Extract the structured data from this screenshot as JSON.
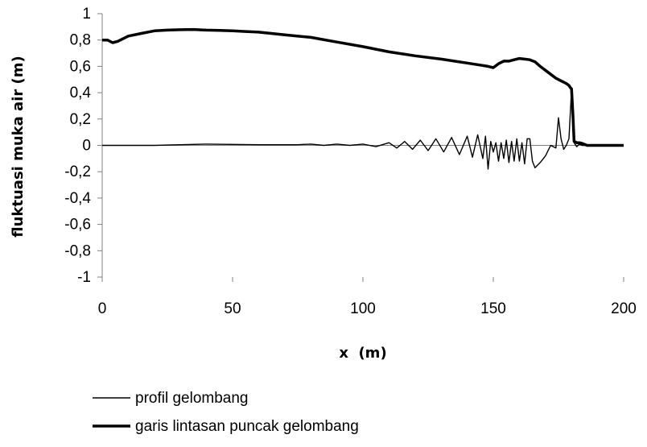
{
  "chart_data": {
    "type": "line",
    "title": "",
    "xlabel": "x  (m)",
    "ylabel": "fluktuasi muka air (m)",
    "xlim": [
      0,
      200
    ],
    "ylim": [
      -1,
      1
    ],
    "x_ticks": [
      {
        "value": 0,
        "label": "0"
      },
      {
        "value": 50,
        "label": "50"
      },
      {
        "value": 100,
        "label": "100"
      },
      {
        "value": 150,
        "label": "150"
      },
      {
        "value": 200,
        "label": "200"
      }
    ],
    "y_ticks": [
      {
        "value": 1,
        "label": "1"
      },
      {
        "value": 0.8,
        "label": "0,8"
      },
      {
        "value": 0.6,
        "label": "0,6"
      },
      {
        "value": 0.4,
        "label": "0,4"
      },
      {
        "value": 0.2,
        "label": "0,2"
      },
      {
        "value": 0,
        "label": "0"
      },
      {
        "value": -0.2,
        "label": "-0,2"
      },
      {
        "value": -0.4,
        "label": "-0,4"
      },
      {
        "value": -0.6,
        "label": "-0,6"
      },
      {
        "value": -0.8,
        "label": "-0,8"
      },
      {
        "value": -1,
        "label": "-1"
      }
    ],
    "grid": false,
    "legend_position": "bottom-left",
    "series": [
      {
        "name": "profil gelombang",
        "color": "#000000",
        "x": [
          0,
          20,
          40,
          60,
          75,
          80,
          85,
          90,
          95,
          100,
          105,
          110,
          113,
          116,
          119,
          122,
          125,
          128,
          131,
          134,
          137,
          140,
          142,
          144,
          146,
          147,
          148,
          149,
          150,
          151,
          152,
          153,
          154,
          155,
          156,
          157,
          158,
          159,
          160,
          161,
          162,
          163,
          164,
          165,
          166,
          168,
          170,
          172,
          174,
          175,
          176,
          177,
          178,
          179,
          180,
          181,
          182,
          183,
          184,
          185,
          190,
          200
        ],
        "y": [
          0,
          0,
          0.01,
          0.005,
          0.005,
          0.01,
          0,
          0.01,
          0,
          0.01,
          -0.01,
          0.02,
          -0.02,
          0.03,
          -0.03,
          0.04,
          -0.04,
          0.05,
          -0.05,
          0.06,
          -0.07,
          0.07,
          -0.09,
          0.08,
          -0.1,
          0.07,
          -0.18,
          0.03,
          -0.05,
          0.02,
          -0.12,
          0.02,
          -0.1,
          0.04,
          -0.13,
          0.03,
          -0.12,
          0.05,
          -0.12,
          0.02,
          -0.14,
          0.05,
          0.05,
          -0.12,
          -0.17,
          -0.13,
          -0.08,
          0.0,
          -0.02,
          0.21,
          0.05,
          -0.03,
          0.0,
          0.05,
          0.42,
          0.02,
          -0.01,
          0.01,
          0.0,
          0.0,
          0.0,
          0.0
        ]
      },
      {
        "name": "garis lintasan puncak gelombang",
        "color": "#000000",
        "x": [
          0,
          2,
          4,
          6,
          10,
          15,
          20,
          25,
          30,
          35,
          40,
          45,
          50,
          55,
          60,
          70,
          80,
          90,
          100,
          110,
          120,
          130,
          140,
          145,
          148,
          150,
          152,
          154,
          156,
          158,
          160,
          162,
          164,
          166,
          168,
          170,
          172,
          174,
          176,
          177,
          178,
          179,
          179.5,
          180,
          180.5,
          181,
          182,
          183,
          184,
          186,
          190,
          200
        ],
        "y": [
          0.8,
          0.8,
          0.78,
          0.79,
          0.83,
          0.85,
          0.87,
          0.875,
          0.878,
          0.88,
          0.875,
          0.873,
          0.87,
          0.865,
          0.86,
          0.84,
          0.82,
          0.785,
          0.75,
          0.71,
          0.68,
          0.655,
          0.625,
          0.61,
          0.6,
          0.59,
          0.62,
          0.64,
          0.64,
          0.65,
          0.66,
          0.655,
          0.65,
          0.635,
          0.6,
          0.57,
          0.54,
          0.51,
          0.49,
          0.48,
          0.47,
          0.455,
          0.44,
          0.43,
          0.25,
          0.03,
          0.02,
          0.02,
          0.015,
          0.0,
          0.0,
          0.0
        ],
        "thick": true
      }
    ]
  }
}
